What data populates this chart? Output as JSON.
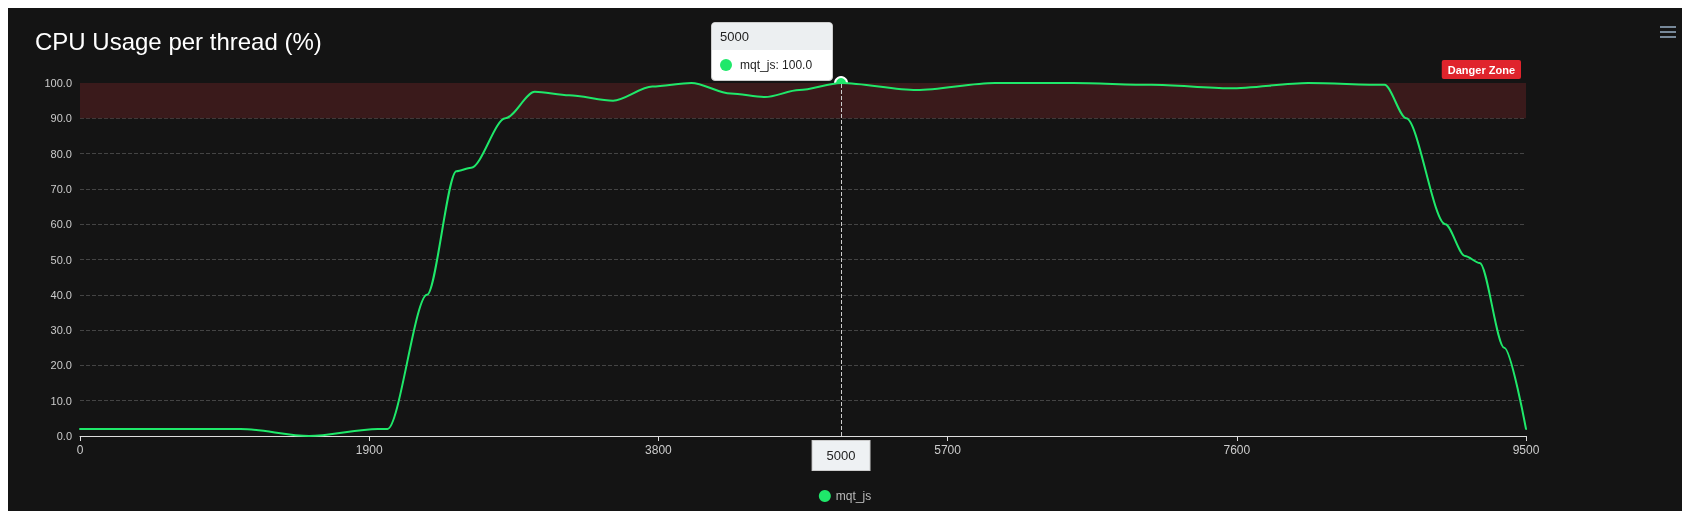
{
  "chart_data": {
    "type": "line",
    "title": "CPU Usage per thread (%)",
    "x": [
      0,
      1055,
      1505,
      1956,
      2020,
      2280,
      2473,
      2570,
      2795,
      2988,
      3213,
      3502,
      3760,
      4017,
      4275,
      4500,
      4725,
      5000,
      5496,
      6010,
      6525,
      7040,
      7555,
      8070,
      8571,
      8713,
      8970,
      9099,
      9196,
      9357,
      9500
    ],
    "series": [
      {
        "name": "mqt_js",
        "color": "#1fe86a",
        "values": [
          2,
          2,
          0,
          2,
          2,
          40,
          75,
          76,
          90,
          97.5,
          96.5,
          95,
          99,
          100,
          97,
          96,
          98,
          100,
          98,
          100,
          100,
          99.5,
          98.5,
          100,
          99.5,
          90,
          60,
          51,
          49,
          25,
          2
        ]
      }
    ],
    "xlim": [
      0,
      9500
    ],
    "xticks": [
      0,
      1900,
      3800,
      5700,
      7600,
      9500
    ],
    "ylim": [
      0,
      100
    ],
    "yticks": [
      {
        "value": 0,
        "label": "0.0"
      },
      {
        "value": 10,
        "label": "10.0"
      },
      {
        "value": 20,
        "label": "20.0"
      },
      {
        "value": 30,
        "label": "30.0"
      },
      {
        "value": 40,
        "label": "40.0"
      },
      {
        "value": 50,
        "label": "50.0"
      },
      {
        "value": 60,
        "label": "60.0"
      },
      {
        "value": 70,
        "label": "70.0"
      },
      {
        "value": 80,
        "label": "80.0"
      },
      {
        "value": 90,
        "label": "90.0"
      },
      {
        "value": 100,
        "label": "100.0"
      }
    ],
    "bands": [
      {
        "axis": "y",
        "from": 90,
        "to": 100,
        "label": "Danger Zone",
        "color": "#3a1a1b"
      }
    ],
    "ref_lines": [
      {
        "axis": "x",
        "value": 5000,
        "label": "5000",
        "line_style": "dashed"
      }
    ],
    "annotations": [
      "5000",
      "mqt_js: 100.0"
    ],
    "grid": "y",
    "legend": "bottom",
    "marker": "none",
    "line_style": "solid"
  }
}
